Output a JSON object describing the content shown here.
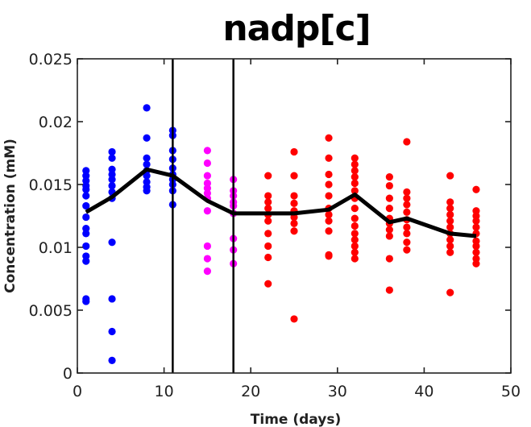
{
  "chart_data": {
    "type": "scatter",
    "title": "nadp[c]",
    "xlabel": "Time (days)",
    "ylabel": "Concentration (mM)",
    "xlim": [
      0,
      50
    ],
    "ylim": [
      0,
      0.025
    ],
    "xticks": [
      "0",
      "10",
      "20",
      "30",
      "40",
      "50"
    ],
    "yticks": [
      "0",
      "0.005",
      "0.01",
      "0.015",
      "0.02",
      "0.025"
    ],
    "grid": false,
    "vertical_lines": [
      11,
      18
    ],
    "series": [
      {
        "color": "#0000ff",
        "points": [
          [
            1,
            0.0161
          ],
          [
            1,
            0.0157
          ],
          [
            1,
            0.0153
          ],
          [
            1,
            0.0149
          ],
          [
            1,
            0.0146
          ],
          [
            1,
            0.0141
          ],
          [
            1,
            0.0133
          ],
          [
            1,
            0.0124
          ],
          [
            1,
            0.0115
          ],
          [
            1,
            0.0111
          ],
          [
            1,
            0.0101
          ],
          [
            1,
            0.0093
          ],
          [
            1,
            0.0089
          ],
          [
            1,
            0.0059
          ],
          [
            1,
            0.0057
          ],
          [
            4,
            0.0176
          ],
          [
            4,
            0.0171
          ],
          [
            4,
            0.0162
          ],
          [
            4,
            0.0158
          ],
          [
            4,
            0.0154
          ],
          [
            4,
            0.0149
          ],
          [
            4,
            0.0144
          ],
          [
            4,
            0.0139
          ],
          [
            4,
            0.0104
          ],
          [
            4,
            0.0059
          ],
          [
            4,
            0.0033
          ],
          [
            4,
            0.001
          ],
          [
            8,
            0.0211
          ],
          [
            8,
            0.0187
          ],
          [
            8,
            0.0171
          ],
          [
            8,
            0.0166
          ],
          [
            8,
            0.0161
          ],
          [
            8,
            0.0157
          ],
          [
            8,
            0.0152
          ],
          [
            8,
            0.0148
          ],
          [
            8,
            0.0145
          ],
          [
            11,
            0.0193
          ],
          [
            11,
            0.0189
          ],
          [
            11,
            0.0177
          ],
          [
            11,
            0.017
          ],
          [
            11,
            0.0163
          ],
          [
            11,
            0.0158
          ],
          [
            11,
            0.0154
          ],
          [
            11,
            0.015
          ],
          [
            11,
            0.0145
          ],
          [
            11,
            0.0134
          ]
        ]
      },
      {
        "color": "#ff00ff",
        "points": [
          [
            15,
            0.0177
          ],
          [
            15,
            0.0167
          ],
          [
            15,
            0.0157
          ],
          [
            15,
            0.0151
          ],
          [
            15,
            0.0147
          ],
          [
            15,
            0.0143
          ],
          [
            15,
            0.0139
          ],
          [
            15,
            0.0129
          ],
          [
            15,
            0.0101
          ],
          [
            15,
            0.0091
          ],
          [
            15,
            0.0081
          ],
          [
            18,
            0.0154
          ],
          [
            18,
            0.0145
          ],
          [
            18,
            0.0141
          ],
          [
            18,
            0.0136
          ],
          [
            18,
            0.0133
          ],
          [
            18,
            0.0127
          ],
          [
            18,
            0.0107
          ],
          [
            18,
            0.0098
          ],
          [
            18,
            0.0087
          ]
        ]
      },
      {
        "color": "#ff0000",
        "points": [
          [
            22,
            0.0157
          ],
          [
            22,
            0.0141
          ],
          [
            22,
            0.0136
          ],
          [
            22,
            0.0131
          ],
          [
            22,
            0.0126
          ],
          [
            22,
            0.0121
          ],
          [
            22,
            0.0111
          ],
          [
            22,
            0.0101
          ],
          [
            22,
            0.0092
          ],
          [
            22,
            0.0071
          ],
          [
            25,
            0.0176
          ],
          [
            25,
            0.0157
          ],
          [
            25,
            0.0141
          ],
          [
            25,
            0.0135
          ],
          [
            25,
            0.0129
          ],
          [
            25,
            0.0124
          ],
          [
            25,
            0.0119
          ],
          [
            25,
            0.0113
          ],
          [
            25,
            0.0043
          ],
          [
            29,
            0.0187
          ],
          [
            29,
            0.0171
          ],
          [
            29,
            0.0158
          ],
          [
            29,
            0.015
          ],
          [
            29,
            0.0141
          ],
          [
            29,
            0.0131
          ],
          [
            29,
            0.0126
          ],
          [
            29,
            0.0121
          ],
          [
            29,
            0.0113
          ],
          [
            29,
            0.0094
          ],
          [
            29,
            0.0093
          ],
          [
            32,
            0.0171
          ],
          [
            32,
            0.0166
          ],
          [
            32,
            0.0161
          ],
          [
            32,
            0.0156
          ],
          [
            32,
            0.0151
          ],
          [
            32,
            0.0145
          ],
          [
            32,
            0.0139
          ],
          [
            32,
            0.0131
          ],
          [
            32,
            0.0123
          ],
          [
            32,
            0.0117
          ],
          [
            32,
            0.0111
          ],
          [
            32,
            0.0106
          ],
          [
            32,
            0.0101
          ],
          [
            32,
            0.0096
          ],
          [
            32,
            0.0091
          ],
          [
            36,
            0.0156
          ],
          [
            36,
            0.0149
          ],
          [
            36,
            0.0139
          ],
          [
            36,
            0.0131
          ],
          [
            36,
            0.0123
          ],
          [
            36,
            0.0119
          ],
          [
            36,
            0.0114
          ],
          [
            36,
            0.0109
          ],
          [
            36,
            0.0091
          ],
          [
            36,
            0.0066
          ],
          [
            38,
            0.0184
          ],
          [
            38,
            0.0144
          ],
          [
            38,
            0.0139
          ],
          [
            38,
            0.0134
          ],
          [
            38,
            0.0128
          ],
          [
            38,
            0.0122
          ],
          [
            38,
            0.0116
          ],
          [
            38,
            0.0111
          ],
          [
            38,
            0.0104
          ],
          [
            38,
            0.0098
          ],
          [
            43,
            0.0157
          ],
          [
            43,
            0.0136
          ],
          [
            43,
            0.0131
          ],
          [
            43,
            0.0126
          ],
          [
            43,
            0.0121
          ],
          [
            43,
            0.0116
          ],
          [
            43,
            0.0111
          ],
          [
            43,
            0.0106
          ],
          [
            43,
            0.0101
          ],
          [
            43,
            0.0096
          ],
          [
            43,
            0.0064
          ],
          [
            46,
            0.0146
          ],
          [
            46,
            0.0129
          ],
          [
            46,
            0.0125
          ],
          [
            46,
            0.0121
          ],
          [
            46,
            0.0116
          ],
          [
            46,
            0.0111
          ],
          [
            46,
            0.0105
          ],
          [
            46,
            0.0101
          ],
          [
            46,
            0.0096
          ],
          [
            46,
            0.0091
          ],
          [
            46,
            0.0087
          ]
        ]
      }
    ],
    "mean_line": {
      "color": "#000000",
      "x": [
        1,
        4,
        8,
        11,
        15,
        18,
        22,
        25,
        29,
        32,
        36,
        38,
        43,
        46
      ],
      "y": [
        0.0128,
        0.014,
        0.0162,
        0.0157,
        0.0137,
        0.0127,
        0.0127,
        0.0127,
        0.013,
        0.0142,
        0.012,
        0.0123,
        0.0111,
        0.0109
      ]
    }
  }
}
